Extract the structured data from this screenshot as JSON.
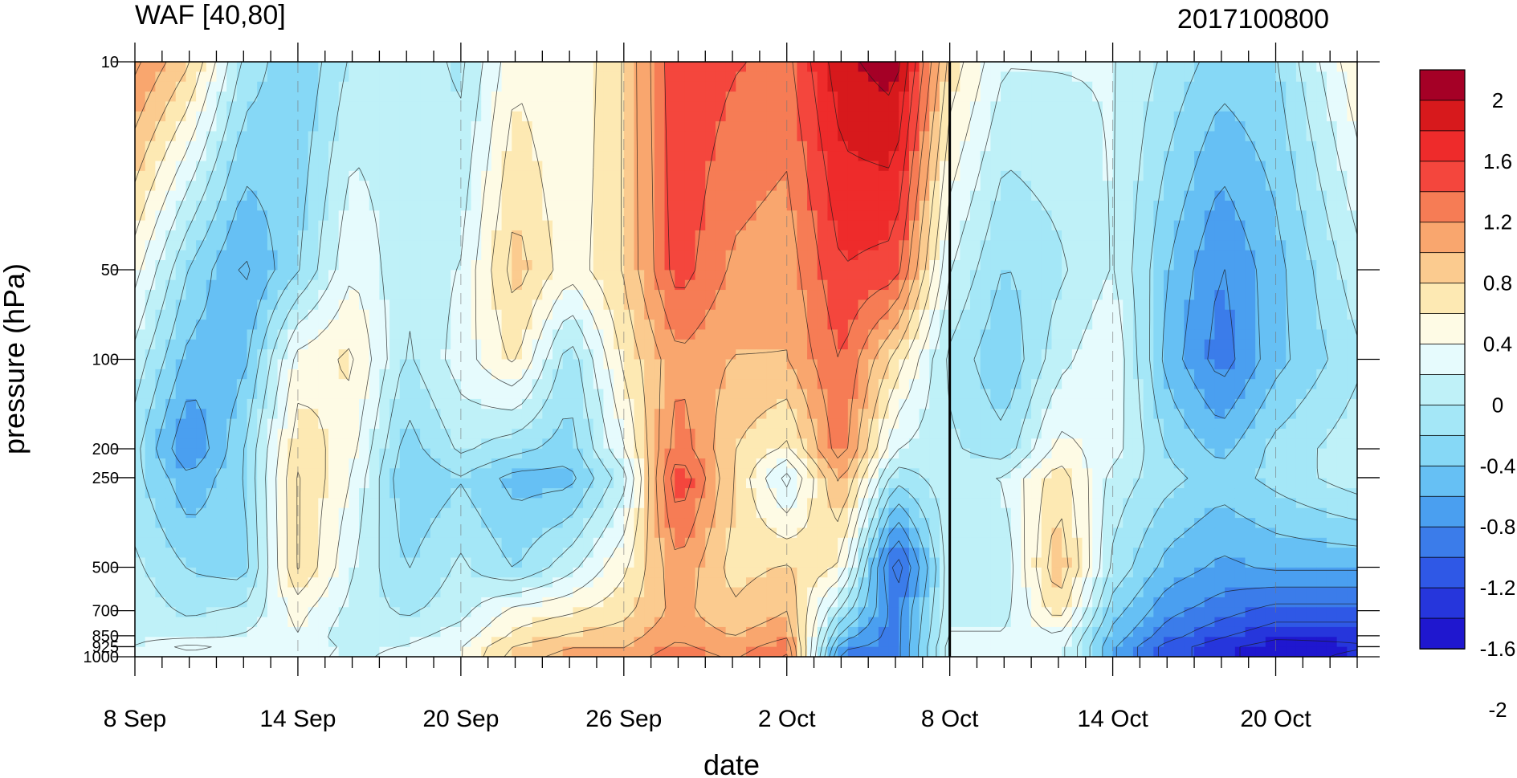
{
  "chart_data": {
    "type": "heatmap",
    "title_left": "WAF [40,80]",
    "title_right": "2017100800",
    "xlabel": "date",
    "ylabel": "pressure (hPa)",
    "x_ticks": [
      "8 Sep",
      "14 Sep",
      "20 Sep",
      "26 Sep",
      "2 Oct",
      "8 Oct",
      "14 Oct",
      "20 Oct"
    ],
    "x_range": [
      "8 Sep",
      "23 Oct"
    ],
    "y_ticks": [
      "10",
      "50",
      "100",
      "200",
      "250",
      "500",
      "700",
      "850",
      "925",
      "1000"
    ],
    "y_scale": "log",
    "y_range": [
      1000,
      10
    ],
    "current_date_marker": "8 Oct",
    "colorbar": {
      "labels": [
        "2",
        "1.6",
        "1.2",
        "0.8",
        "0.4",
        "0",
        "-0.4",
        "-0.8",
        "-1.2",
        "-1.6",
        "-2"
      ],
      "colors": [
        "#a50026",
        "#d7191c",
        "#ee2b2b",
        "#f4463d",
        "#f67c55",
        "#f9a66e",
        "#fbcb8f",
        "#fde9b3",
        "#fefbe5",
        "#e6fbfd",
        "#bff1f8",
        "#a4e7f7",
        "#86d8f6",
        "#66c0f4",
        "#4a9ff0",
        "#3b7cea",
        "#2f58e6",
        "#2636dc",
        "#1f17cf"
      ]
    },
    "columns": [
      {
        "date": "8 Sep",
        "profile": [
          1.1,
          0.2,
          -0.2,
          -0.5,
          -0.5,
          -0.3,
          -0.2,
          -0.2,
          -0.1,
          -0.1
        ]
      },
      {
        "date": "10 Sep",
        "profile": [
          0.6,
          -0.6,
          -0.9,
          -1.3,
          -1.0,
          -0.6,
          -0.4,
          -0.2,
          0.2,
          0.0
        ]
      },
      {
        "date": "12 Sep",
        "profile": [
          -0.4,
          -1.1,
          -0.9,
          -0.6,
          -0.6,
          -0.7,
          -0.3,
          -0.1,
          0.0,
          0.0
        ]
      },
      {
        "date": "14 Sep",
        "profile": [
          -0.8,
          -0.6,
          0.2,
          0.5,
          0.6,
          0.6,
          0.2,
          0.1,
          0.1,
          0.0
        ]
      },
      {
        "date": "16 Sep",
        "profile": [
          -0.3,
          0.1,
          0.4,
          0.2,
          0.1,
          -0.1,
          -0.2,
          -0.3,
          -0.2,
          -0.2
        ]
      },
      {
        "date": "18 Sep",
        "profile": [
          -0.2,
          -0.3,
          -0.4,
          -0.7,
          -0.8,
          -0.6,
          -0.4,
          -0.2,
          -0.1,
          0.0
        ]
      },
      {
        "date": "20 Sep",
        "profile": [
          -0.4,
          -0.1,
          0.0,
          -0.3,
          -0.6,
          -0.3,
          -0.2,
          0.0,
          0.1,
          0.1
        ]
      },
      {
        "date": "22 Sep",
        "profile": [
          0.3,
          0.7,
          0.4,
          -0.5,
          -0.9,
          -0.6,
          0.2,
          0.4,
          0.6,
          0.7
        ]
      },
      {
        "date": "24 Sep",
        "profile": [
          0.1,
          0.2,
          -0.5,
          -0.7,
          -0.9,
          -0.2,
          0.3,
          0.6,
          0.8,
          0.9
        ]
      },
      {
        "date": "26 Sep",
        "profile": [
          0.6,
          0.6,
          0.4,
          0.1,
          -0.2,
          0.3,
          0.5,
          0.7,
          0.8,
          0.9
        ]
      },
      {
        "date": "28 Sep",
        "profile": [
          1.5,
          1.4,
          1.0,
          1.2,
          1.5,
          1.0,
          0.9,
          1.0,
          1.1,
          1.2
        ]
      },
      {
        "date": "30 Sep",
        "profile": [
          1.3,
          1.0,
          0.8,
          0.6,
          0.6,
          0.5,
          0.6,
          0.8,
          0.9,
          1.0
        ]
      },
      {
        "date": "2 Oct",
        "profile": [
          1.2,
          0.9,
          0.8,
          0.3,
          -0.2,
          0.6,
          0.8,
          1.0,
          1.2,
          1.3
        ]
      },
      {
        "date": "4 Oct",
        "profile": [
          1.9,
          1.5,
          1.3,
          1.2,
          0.9,
          0.3,
          -0.4,
          -0.9,
          -1.2,
          -1.4
        ]
      },
      {
        "date": "6 Oct",
        "profile": [
          2.1,
          1.4,
          0.5,
          -0.1,
          -0.5,
          -1.7,
          -1.4,
          -1.4,
          -1.4,
          -1.4
        ]
      },
      {
        "date": "8 Oct",
        "profile": [
          0.5,
          -0.1,
          -0.4,
          -0.3,
          -0.2,
          -0.2,
          -0.2,
          -0.1,
          0.0,
          0.0
        ]
      },
      {
        "date": "10 Oct",
        "profile": [
          -0.1,
          -0.6,
          -0.8,
          -0.5,
          -0.1,
          -0.3,
          -0.2,
          -0.1,
          0.0,
          0.0
        ]
      },
      {
        "date": "12 Oct",
        "profile": [
          -0.1,
          -0.4,
          -0.2,
          0.2,
          0.5,
          0.8,
          0.5,
          0.1,
          0.0,
          0.0
        ]
      },
      {
        "date": "14 Oct",
        "profile": [
          -0.1,
          -0.1,
          0.1,
          0.0,
          -0.2,
          -0.4,
          -0.7,
          -0.9,
          -1.0,
          -1.0
        ]
      },
      {
        "date": "16 Oct",
        "profile": [
          -0.4,
          -0.8,
          -0.9,
          -0.6,
          -0.5,
          -0.9,
          -1.2,
          -1.4,
          -1.6,
          -1.6
        ]
      },
      {
        "date": "18 Oct",
        "profile": [
          -0.7,
          -1.3,
          -1.4,
          -0.9,
          -0.7,
          -1.1,
          -1.4,
          -1.7,
          -1.9,
          -1.9
        ]
      },
      {
        "date": "20 Oct",
        "profile": [
          -0.6,
          -0.9,
          -0.9,
          -0.5,
          -0.5,
          -1.0,
          -1.6,
          -1.9,
          -2.1,
          -2.1
        ]
      },
      {
        "date": "23 Oct",
        "profile": [
          0.3,
          -0.2,
          -0.4,
          -0.2,
          -0.2,
          -1.0,
          -1.6,
          -1.9,
          -2.0,
          -1.9
        ]
      }
    ]
  }
}
